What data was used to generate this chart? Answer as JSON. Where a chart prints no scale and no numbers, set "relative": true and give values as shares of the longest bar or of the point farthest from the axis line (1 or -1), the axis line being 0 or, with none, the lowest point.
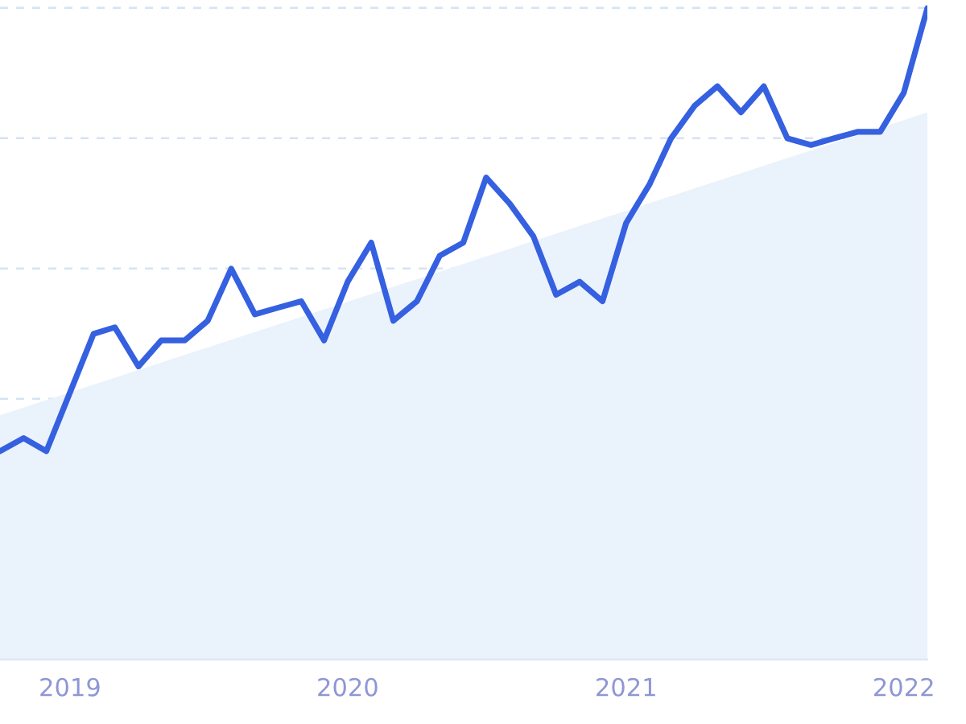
{
  "chart_data": {
    "type": "line",
    "relative": true,
    "grid": "y",
    "tick_labels": "x",
    "marker": "none",
    "line_style": "solid",
    "xlim": [
      "2018-10",
      "2022-02"
    ],
    "xticks": [
      "2019",
      "2020",
      "2021",
      "2022"
    ],
    "series": [
      {
        "type": "area",
        "color": "#eaf2fc",
        "x": [
          "2018-10",
          "2022-02"
        ],
        "values": [
          0.375,
          0.84
        ]
      },
      {
        "color": "#3560e0",
        "x": [
          "2018-10",
          "2018-11",
          "2018-12",
          "2019-01",
          "2019-02",
          "2019-03",
          "2019-04",
          "2019-05",
          "2019-06",
          "2019-07",
          "2019-08",
          "2019-09",
          "2019-10",
          "2019-11",
          "2019-12",
          "2020-01",
          "2020-02",
          "2020-03",
          "2020-04",
          "2020-05",
          "2020-06",
          "2020-07",
          "2020-08",
          "2020-09",
          "2020-10",
          "2020-11",
          "2020-12",
          "2021-01",
          "2021-02",
          "2021-03",
          "2021-04",
          "2021-05",
          "2021-06",
          "2021-07",
          "2021-08",
          "2021-09",
          "2021-10",
          "2021-11",
          "2021-12",
          "2022-01",
          "2022-02"
        ],
        "values": [
          0.32,
          0.34,
          0.32,
          0.41,
          0.5,
          0.51,
          0.45,
          0.49,
          0.49,
          0.52,
          0.6,
          0.53,
          0.54,
          0.55,
          0.49,
          0.58,
          0.64,
          0.52,
          0.55,
          0.62,
          0.64,
          0.74,
          0.7,
          0.65,
          0.56,
          0.58,
          0.55,
          0.67,
          0.73,
          0.8,
          0.85,
          0.88,
          0.84,
          0.88,
          0.8,
          0.79,
          0.8,
          0.81,
          0.81,
          0.87,
          1
        ]
      }
    ]
  }
}
